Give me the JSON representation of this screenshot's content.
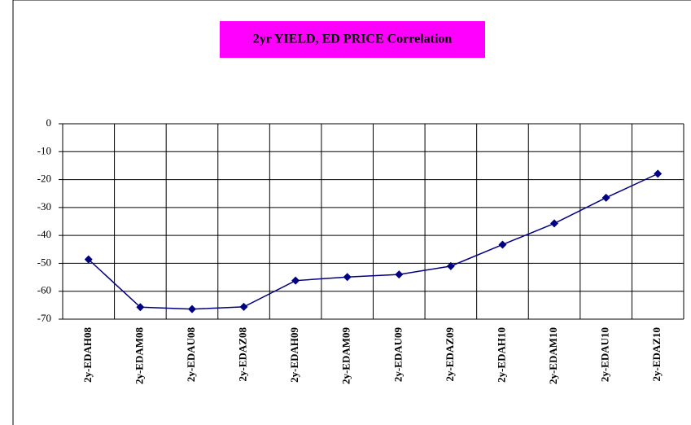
{
  "chart_data": {
    "type": "line",
    "title": "2yr YIELD, ED PRICE Correlation",
    "categories": [
      "2y-EDAH08",
      "2y-EDAM08",
      "2y-EDAU08",
      "2y-EDAZ08",
      "2y-EDAH09",
      "2y-EDAM09",
      "2y-EDAU09",
      "2y-EDAZ09",
      "2y-EDAH10",
      "2y-EDAM10",
      "2y-EDAU10",
      "2y-EDAZ10"
    ],
    "values": [
      -48.6,
      -65.7,
      -66.4,
      -65.6,
      -56.2,
      -54.9,
      -54.0,
      -51.0,
      -43.3,
      -35.7,
      -26.5,
      -17.9
    ],
    "color": "#000080",
    "ylim": [
      -70,
      0
    ],
    "yticks": [
      -70,
      -60,
      -50,
      -40,
      -30,
      -20,
      -10,
      0
    ],
    "grid": true
  }
}
